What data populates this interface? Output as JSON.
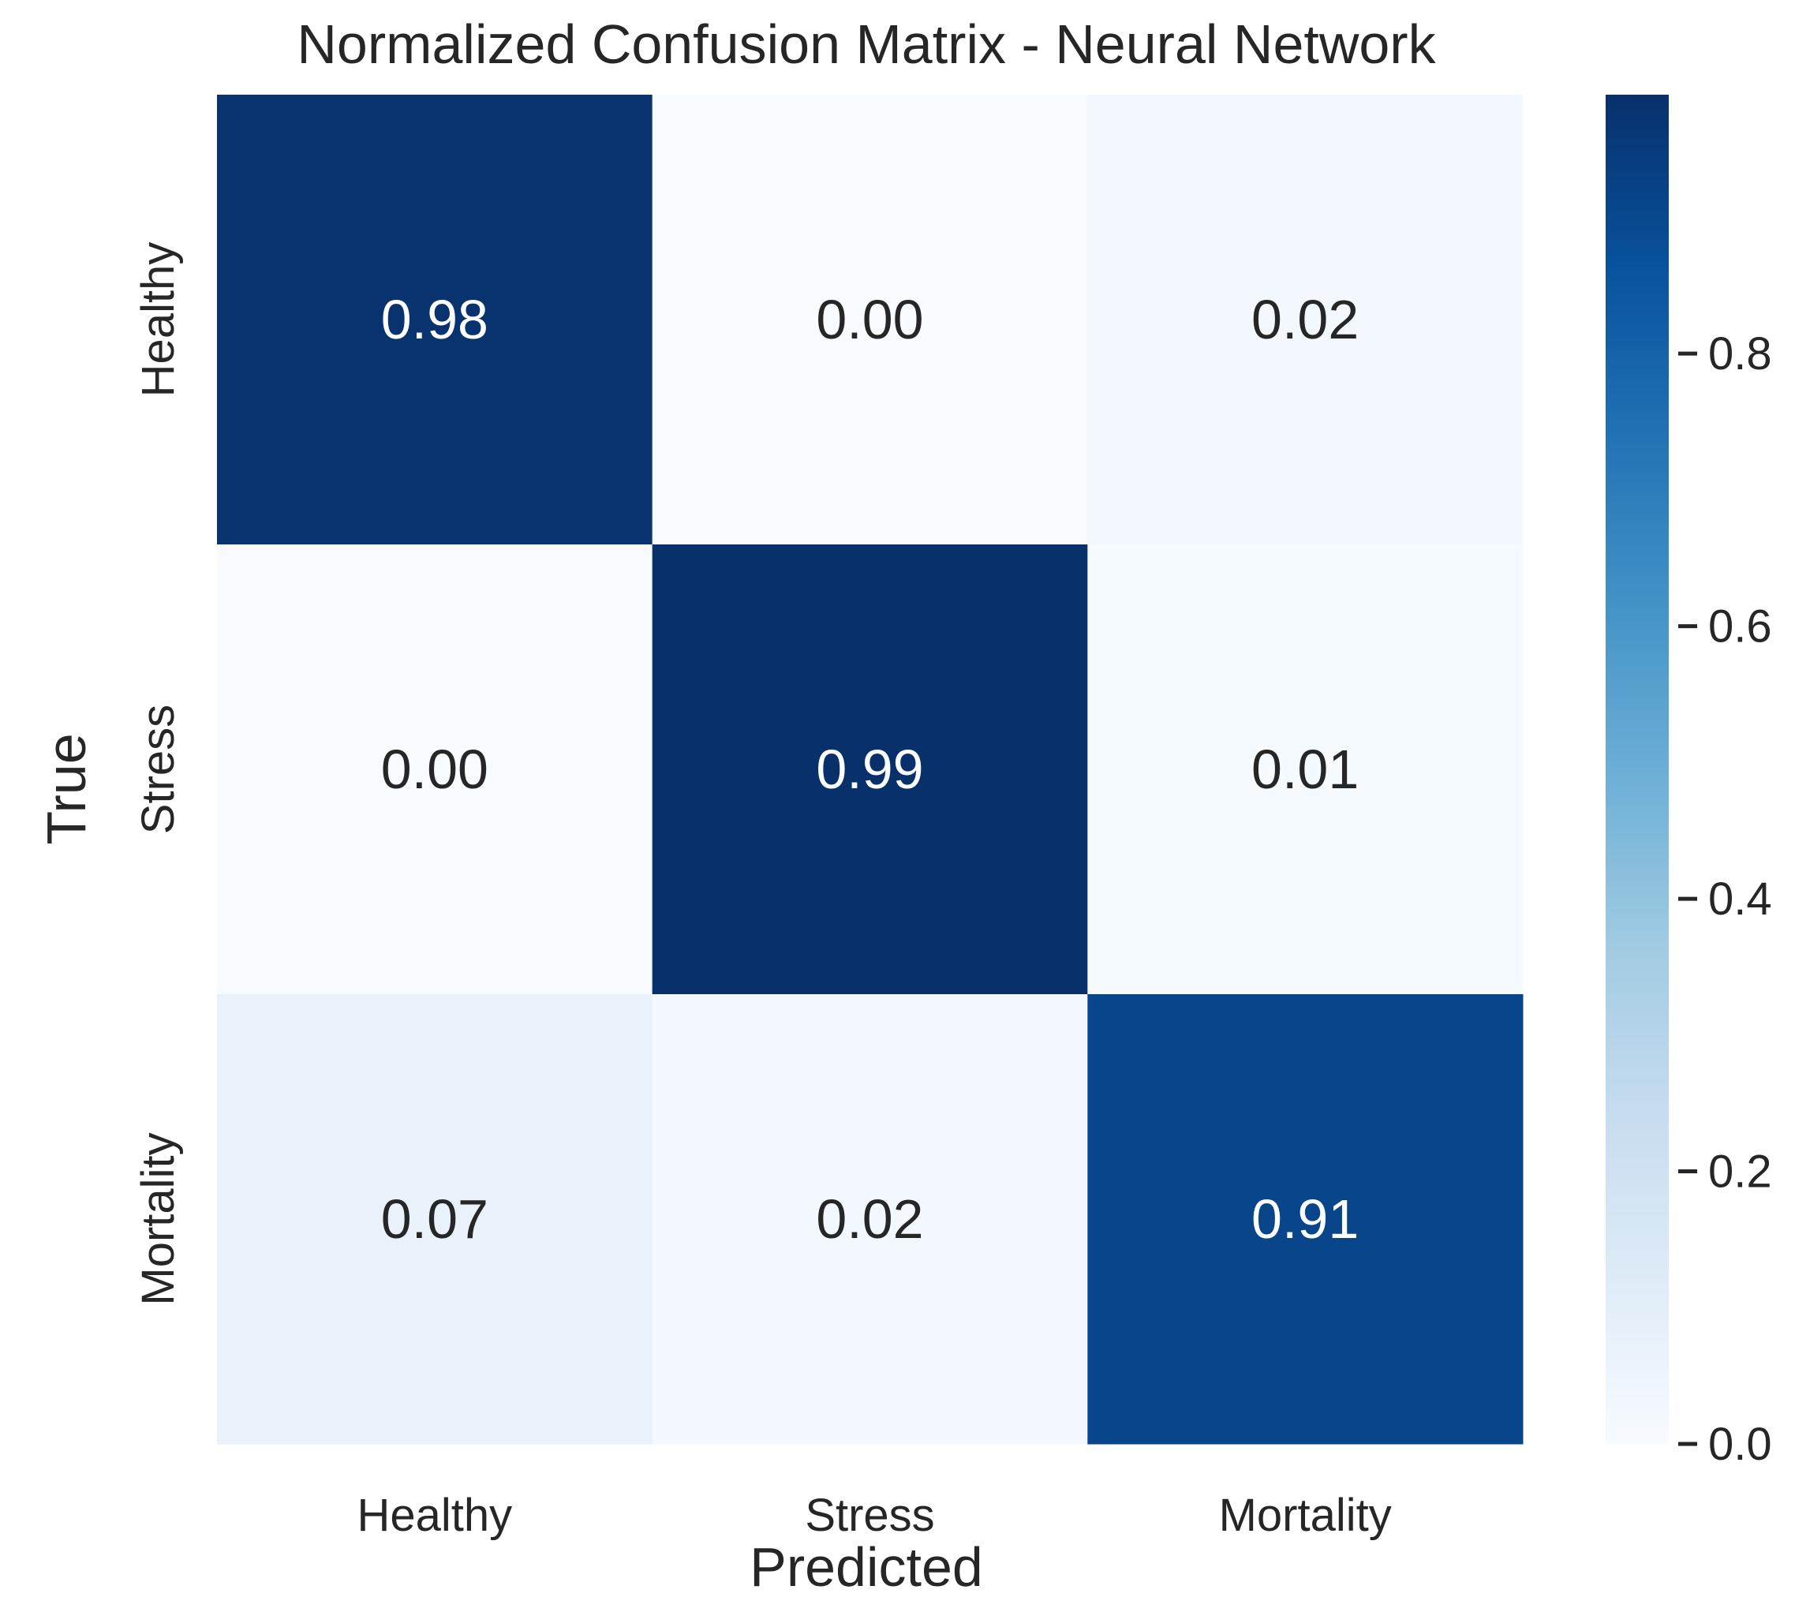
{
  "chart_data": {
    "type": "heatmap",
    "title": "Normalized Confusion Matrix - Neural Network",
    "xlabel": "Predicted",
    "ylabel": "True",
    "x_categories": [
      "Healthy",
      "Stress",
      "Mortality"
    ],
    "y_categories": [
      "Healthy",
      "Stress",
      "Mortality"
    ],
    "values": [
      [
        0.98,
        0.0,
        0.02
      ],
      [
        0.0,
        0.99,
        0.01
      ],
      [
        0.07,
        0.02,
        0.91
      ]
    ],
    "value_labels": [
      [
        "0.98",
        "0.00",
        "0.02"
      ],
      [
        "0.00",
        "0.99",
        "0.01"
      ],
      [
        "0.07",
        "0.02",
        "0.91"
      ]
    ],
    "colormap": "Blues",
    "colorbar": {
      "range": [
        0.0,
        0.99
      ],
      "ticks": [
        0.0,
        0.2,
        0.4,
        0.6,
        0.8
      ],
      "tick_labels": [
        "0.0",
        "0.2",
        "0.4",
        "0.6",
        "0.8"
      ]
    },
    "grid": false,
    "legend": "colorbar-right"
  }
}
